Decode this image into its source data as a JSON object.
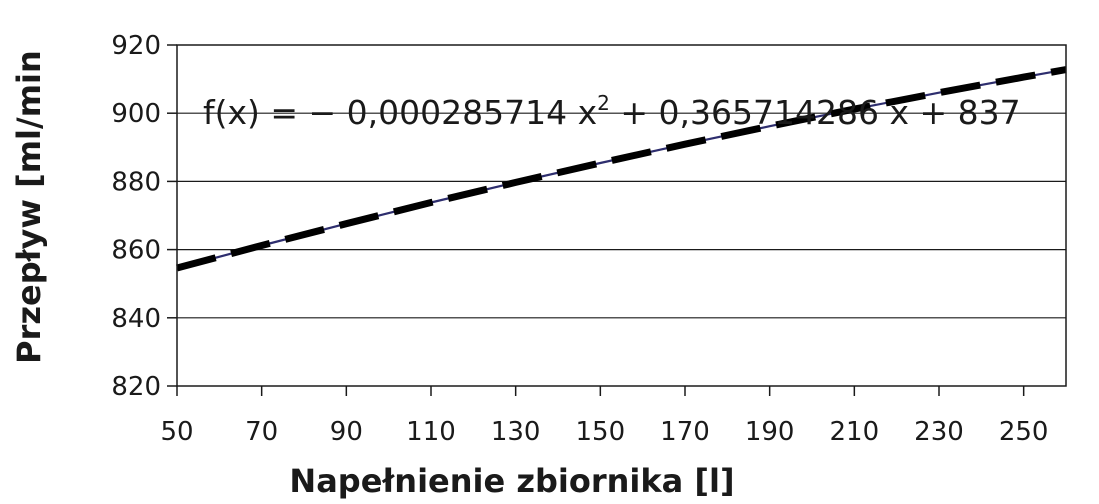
{
  "chart_data": {
    "type": "line",
    "xlabel": "Napełnienie zbiornika [l]",
    "ylabel": "Przepływ [ml/min",
    "xlim": [
      50,
      260
    ],
    "ylim": [
      820,
      920
    ],
    "x_ticks": [
      50,
      70,
      90,
      110,
      130,
      150,
      170,
      190,
      210,
      230,
      250
    ],
    "y_ticks": [
      820,
      840,
      860,
      880,
      900,
      920
    ],
    "grid": "horizontal",
    "legend": "none",
    "equation": {
      "prefix": "f(x) = − 0,000285714 x",
      "exponent": "2",
      "suffix": " + 0,365714286 x + 837"
    },
    "series": [
      {
        "style": "solid",
        "color": "#2e2e6e",
        "x": [
          50,
          70,
          90,
          110,
          130,
          150,
          170,
          190,
          210,
          230,
          250,
          260
        ],
        "y": [
          854.6,
          861.2,
          867.6,
          873.8,
          879.7,
          885.4,
          890.9,
          896.2,
          901.2,
          906.0,
          910.6,
          912.8
        ]
      },
      {
        "style": "dashed",
        "color": "#000000",
        "x": [
          50,
          70,
          90,
          110,
          130,
          150,
          170,
          190,
          210,
          230,
          250,
          260
        ],
        "y": [
          854.6,
          861.2,
          867.6,
          873.8,
          879.7,
          885.4,
          890.9,
          896.2,
          901.2,
          906.0,
          910.6,
          912.8
        ]
      }
    ]
  }
}
